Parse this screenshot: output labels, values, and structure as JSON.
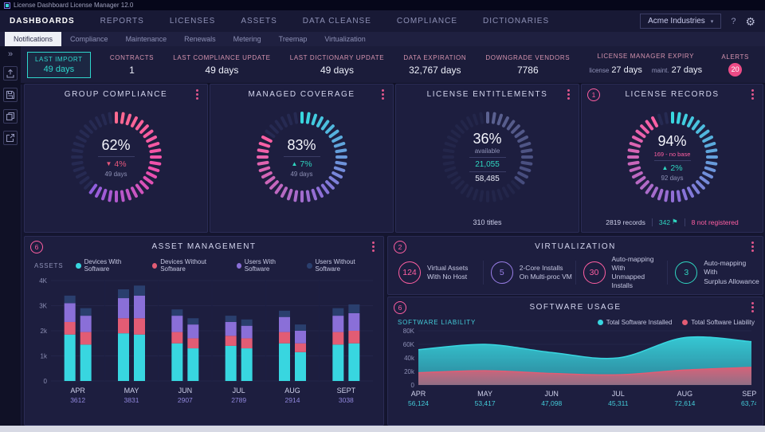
{
  "window": {
    "title": "License Dashboard License Manager 12.0"
  },
  "nav": {
    "items": [
      "DASHBOARDS",
      "REPORTS",
      "LICENSES",
      "ASSETS",
      "DATA CLEANSE",
      "COMPLIANCE",
      "DICTIONARIES"
    ],
    "active": "DASHBOARDS",
    "account": "Acme Industries",
    "help": "?"
  },
  "subnav": {
    "items": [
      "Notifications",
      "Compliance",
      "Maintenance",
      "Renewals",
      "Metering",
      "Treemap",
      "Virtualization"
    ],
    "active": "Notifications"
  },
  "kpis": {
    "last_import": {
      "label": "LAST IMPORT",
      "value": "49 days"
    },
    "contracts": {
      "label": "CONTRACTS",
      "value": "1"
    },
    "last_compliance_update": {
      "label": "LAST COMPLIANCE UPDATE",
      "value": "49 days"
    },
    "last_dictionary_update": {
      "label": "LAST DICTIONARY UPDATE",
      "value": "49 days"
    },
    "data_expiration": {
      "label": "DATA EXPIRATION",
      "value": "32,767 days"
    },
    "downgrade_vendors": {
      "label": "DOWNGRADE VENDORS",
      "value": "7786"
    },
    "license_manager_expiry": {
      "label": "LICENSE MANAGER EXPIRY",
      "license_label": "license",
      "license_value": "27 days",
      "maint_label": "maint.",
      "maint_value": "27 days"
    },
    "alerts": {
      "label": "ALERTS",
      "count": "20"
    }
  },
  "gauges": {
    "group_compliance": {
      "title": "GROUP COMPLIANCE",
      "percent": 62,
      "value": "62%",
      "delta_arrow": "▼",
      "delta": "4%",
      "delta_color": "#e8587c",
      "sub": "49 days",
      "ring_colors": [
        "#ff6a90",
        "#ee4fae",
        "#8a5fe0"
      ],
      "dim_color": "#262a52"
    },
    "managed_coverage": {
      "title": "MANAGED COVERAGE",
      "percent": 83,
      "value": "83%",
      "delta_arrow": "▲",
      "delta": "7%",
      "delta_color": "#2fd6c0",
      "sub": "49 days",
      "ring_colors": [
        "#38d8e0",
        "#8a6fd8",
        "#ff5fa2"
      ],
      "dim_color": "#262a52"
    },
    "license_entitlements": {
      "title": "LICENSE ENTITLEMENTS",
      "percent": 36,
      "value": "36%",
      "available_label": "available",
      "entitled": "21,055",
      "installed": "58,485",
      "footer": "310 titles",
      "ring_colors": [
        "#5c6292",
        "#454b7c"
      ],
      "dim_color": "#23264a"
    },
    "license_records": {
      "title": "LICENSE RECORDS",
      "badge": "1",
      "percent": 94,
      "value": "94%",
      "note": "169 - no base",
      "delta_arrow": "▲",
      "delta": "2%",
      "delta_color": "#2fd6c0",
      "sub": "92 days",
      "ring_colors": [
        "#38d8e0",
        "#8a6fd8",
        "#ff5fa2"
      ],
      "dim_color": "#262a52",
      "records": "2819 records",
      "flagged": "342",
      "flag_icon": "⚑",
      "not_registered": "8 not registered"
    }
  },
  "virtualization": {
    "title": "VIRTUALIZATION",
    "badge": "2",
    "items": [
      {
        "value": "124",
        "color": "#ff5fa2",
        "line1": "Virtual Assets",
        "line2": "With No Host"
      },
      {
        "value": "5",
        "color": "#9a7fe8",
        "line1": "2-Core Installs",
        "line2": "On Multi-proc VM"
      },
      {
        "value": "30",
        "color": "#ff5fa2",
        "line1": "Auto-mapping With",
        "line2": "Unmapped Installs"
      },
      {
        "value": "3",
        "color": "#2fd6c0",
        "line1": "Auto-mapping With",
        "line2": "Surplus Allowance"
      }
    ]
  },
  "chart_data": [
    {
      "type": "bar",
      "name": "asset_management",
      "title": "ASSET MANAGEMENT",
      "badge": "6",
      "axis_label": "ASSETS",
      "ylim": [
        0,
        4000
      ],
      "ytick_values": [
        0,
        1000,
        2000,
        3000,
        4000
      ],
      "ytick_labels": [
        "0",
        "1k",
        "2k",
        "3K",
        "4K"
      ],
      "legend": [
        {
          "label": "Devices With Software",
          "color": "#38d6e0"
        },
        {
          "label": "Devices Without Software",
          "color": "#e25c74"
        },
        {
          "label": "Users With Software",
          "color": "#8a6fd8"
        },
        {
          "label": "Users Without Software",
          "color": "#2a3f6e"
        }
      ],
      "categories": [
        "APR",
        "MAY",
        "JUN",
        "JUL",
        "AUG",
        "SEPT"
      ],
      "category_values": [
        "3612",
        "3831",
        "2907",
        "2789",
        "2914",
        "3038"
      ],
      "stacks": [
        [
          [
            1850,
            500,
            750,
            300
          ],
          [
            1450,
            500,
            650,
            300
          ]
        ],
        [
          [
            1900,
            600,
            800,
            350
          ],
          [
            1850,
            650,
            900,
            400
          ]
        ],
        [
          [
            1500,
            450,
            650,
            250
          ],
          [
            1300,
            400,
            550,
            250
          ]
        ],
        [
          [
            1400,
            400,
            550,
            250
          ],
          [
            1300,
            400,
            500,
            250
          ]
        ],
        [
          [
            1500,
            450,
            600,
            250
          ],
          [
            1150,
            350,
            500,
            250
          ]
        ],
        [
          [
            1450,
            500,
            650,
            300
          ],
          [
            1500,
            500,
            700,
            350
          ]
        ]
      ]
    },
    {
      "type": "area",
      "name": "software_usage",
      "title": "SOFTWARE USAGE",
      "badge": "6",
      "axis_label": "SOFTWARE LIABILITY",
      "ylim": [
        0,
        80000
      ],
      "ytick_values": [
        0,
        20000,
        40000,
        60000,
        80000
      ],
      "ytick_labels": [
        "0",
        "20k",
        "40k",
        "60K",
        "80K"
      ],
      "legend": [
        {
          "label": "Total Software Installed",
          "color": "#38d6e0"
        },
        {
          "label": "Total Software Liability",
          "color": "#e25c74"
        }
      ],
      "categories": [
        "APR",
        "MAY",
        "JUN",
        "JUL",
        "AUG",
        "SEPT"
      ],
      "category_values": [
        "56,124",
        "53,417",
        "47,098",
        "45,311",
        "72,614",
        "63,746"
      ],
      "series": [
        {
          "name": "Total Software Installed",
          "color": "#38d6e0",
          "values": [
            52000,
            60000,
            48000,
            40000,
            70000,
            64000
          ]
        },
        {
          "name": "Total Software Liability",
          "color": "#e25c74",
          "values": [
            18000,
            21000,
            17000,
            15000,
            22000,
            26000
          ]
        }
      ]
    }
  ]
}
